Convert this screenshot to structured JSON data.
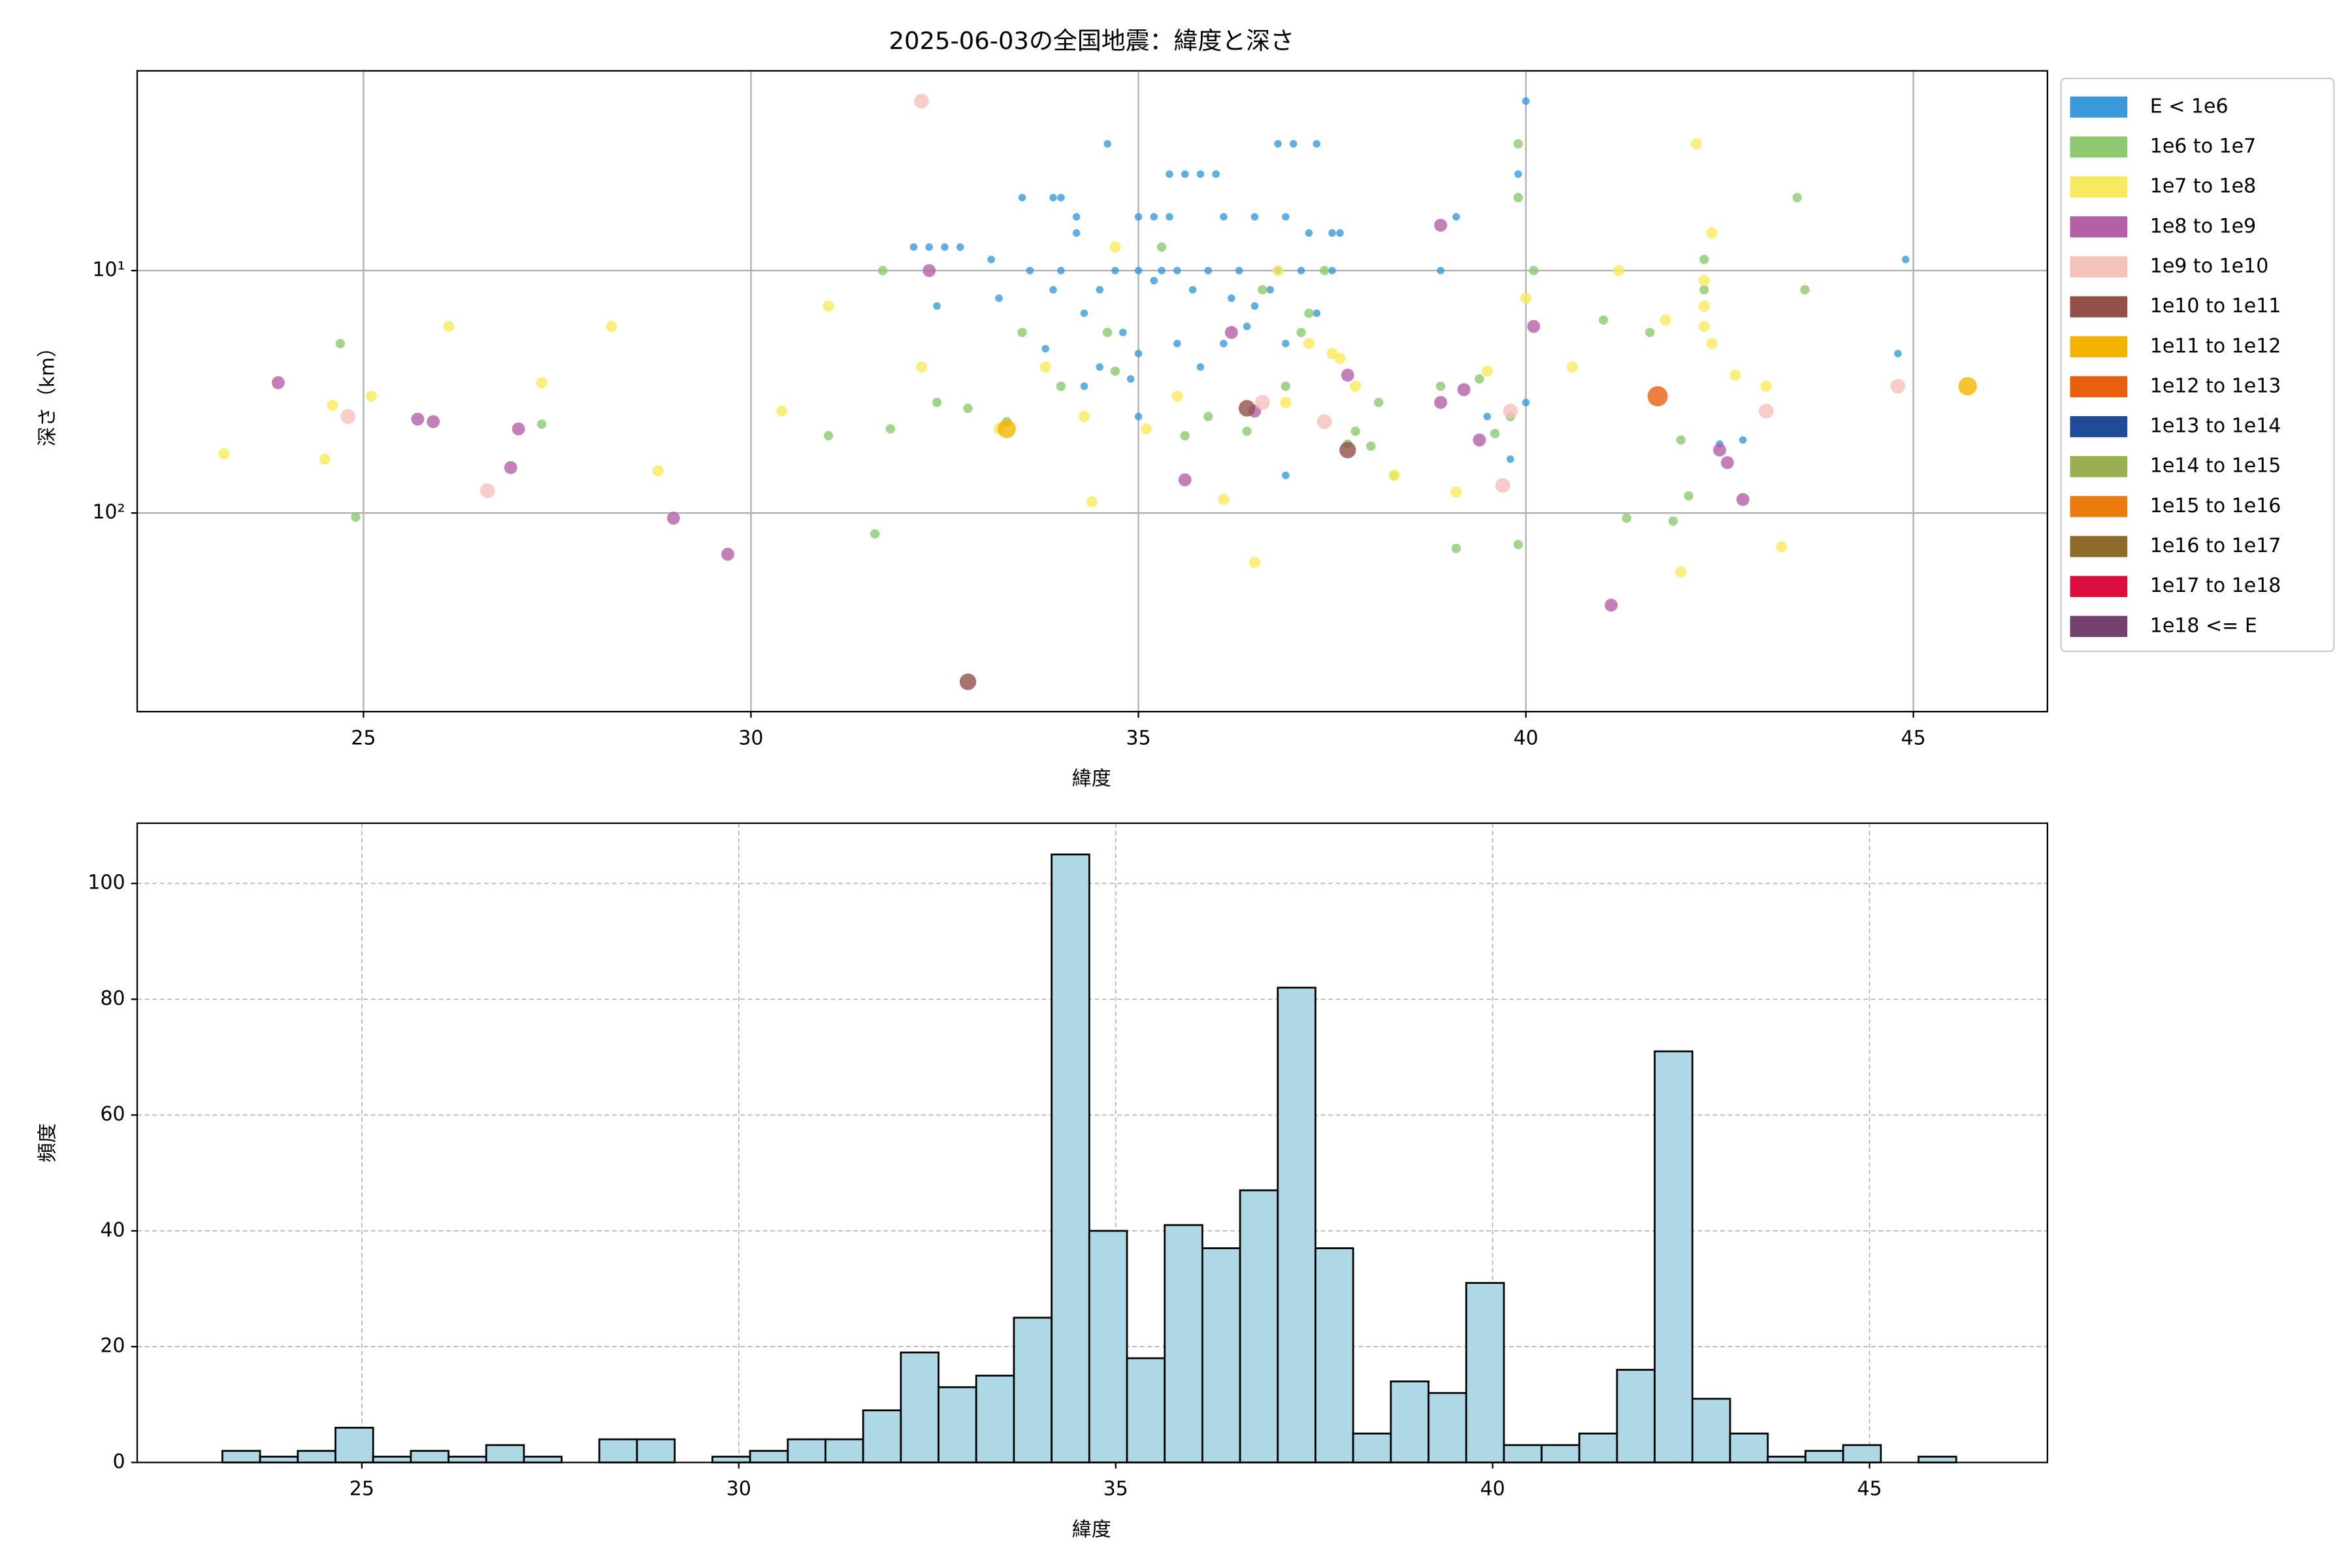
{
  "chart_data": [
    {
      "type": "scatter",
      "title": "2025-06-03の全国地震：緯度と深さ",
      "xlabel": "緯度",
      "ylabel": "深さ（km）",
      "xlim": [
        22.08,
        46.73
      ],
      "xticks": [
        25,
        30,
        35,
        40,
        45
      ],
      "ylim": [
        1.5,
        660
      ],
      "yscale": "log",
      "yinvert": true,
      "yticks": [
        {
          "value": 10,
          "label": "10¹"
        },
        {
          "value": 100,
          "label": "10²"
        }
      ],
      "grid": true,
      "legend": "outside right",
      "series": [
        {
          "name": "E < 1e6",
          "color": "#3a9ad9",
          "x": [
            40.0,
            39.9,
            34.6,
            35.4,
            35.6,
            35.8,
            36.0,
            36.8,
            37.0,
            37.3,
            33.5,
            33.9,
            34.0,
            34.2,
            34.2,
            35.0,
            35.2,
            35.4,
            36.1,
            36.5,
            36.9,
            37.2,
            37.5,
            37.6,
            32.1,
            32.3,
            32.5,
            32.7,
            33.1,
            33.6,
            34.0,
            34.7,
            35.0,
            35.3,
            35.5,
            35.9,
            36.3,
            36.8,
            37.1,
            37.5,
            32.4,
            33.2,
            33.9,
            34.3,
            34.5,
            35.2,
            35.7,
            36.2,
            36.7,
            34.8,
            35.5,
            36.1,
            36.4,
            35.8,
            34.3,
            33.8,
            34.5,
            35.0,
            36.5,
            36.9,
            37.3,
            40.0,
            39.8,
            39.5,
            36.9,
            44.8,
            44.9,
            42.8,
            42.5,
            38.9,
            39.1,
            35.0,
            34.9
          ],
          "y": [
            2.0,
            4.0,
            3.0,
            4.0,
            4.0,
            4.0,
            4.0,
            3.0,
            3.0,
            3.0,
            5.0,
            5.0,
            5.0,
            6.0,
            7.0,
            6.0,
            6.0,
            6.0,
            6.0,
            6.0,
            6.0,
            7.0,
            7.0,
            7.0,
            8.0,
            8.0,
            8.0,
            8.0,
            9.0,
            10,
            10,
            10,
            10,
            10,
            10,
            10,
            10,
            10,
            10,
            10,
            14,
            13,
            12,
            15,
            12,
            11,
            12,
            13,
            12,
            18,
            20,
            20,
            17,
            25,
            30,
            21,
            25,
            22,
            14,
            20,
            15,
            35,
            60,
            40,
            70,
            22,
            9.0,
            50,
            52,
            10,
            6.0,
            40,
            28
          ]
        },
        {
          "name": "1e6 to 1e7",
          "color": "#8cc96f",
          "x": [
            24.7,
            24.9,
            27.3,
            31.0,
            31.6,
            31.7,
            31.8,
            32.4,
            32.8,
            33.3,
            33.5,
            34.0,
            34.6,
            34.7,
            35.6,
            35.9,
            36.4,
            36.9,
            37.2,
            37.4,
            37.7,
            37.8,
            38.0,
            38.3,
            38.9,
            39.1,
            39.4,
            39.6,
            39.8,
            39.9,
            39.9,
            39.9,
            40.1,
            41.0,
            41.3,
            41.6,
            41.9,
            42.0,
            42.1,
            42.3,
            42.3,
            43.5,
            43.6,
            35.3,
            36.6,
            37.1,
            38.1
          ],
          "y": [
            20,
            104,
            43,
            48,
            122,
            10,
            45,
            35,
            37,
            42,
            18,
            30,
            18,
            26,
            48,
            40,
            46,
            30,
            15,
            10,
            52,
            46,
            53,
            70,
            30,
            140,
            28,
            47,
            40,
            135,
            3.0,
            5.0,
            10,
            16,
            105,
            18,
            108,
            50,
            85,
            9.0,
            12,
            5.0,
            12,
            8.0,
            12,
            18,
            35
          ]
        },
        {
          "name": "1e7 to 1e8",
          "color": "#f7ea5e",
          "x": [
            23.2,
            24.5,
            24.6,
            25.1,
            26.1,
            27.3,
            28.2,
            28.8,
            30.4,
            31.0,
            32.2,
            33.2,
            33.8,
            34.3,
            34.4,
            34.7,
            35.1,
            35.5,
            36.1,
            36.5,
            36.9,
            37.2,
            37.6,
            37.8,
            38.3,
            39.1,
            39.5,
            40.0,
            40.6,
            41.2,
            41.8,
            42.0,
            42.2,
            42.3,
            42.3,
            42.3,
            42.4,
            42.4,
            42.7,
            43.1,
            43.3,
            36.8,
            37.5
          ],
          "y": [
            57,
            60,
            36,
            33,
            17,
            29,
            17,
            67,
            38,
            14,
            25,
            45,
            25,
            40,
            90,
            8.0,
            45,
            33,
            88,
            160,
            35,
            20,
            23,
            30,
            70,
            82,
            26,
            13,
            25,
            10,
            16,
            175,
            3.0,
            11,
            14,
            17,
            20,
            7.0,
            27,
            30,
            138,
            10,
            22
          ]
        },
        {
          "name": "1e8 to 1e9",
          "color": "#b460a6",
          "x": [
            23.9,
            25.7,
            25.9,
            27.0,
            26.9,
            29.0,
            29.7,
            32.3,
            35.6,
            36.5,
            37.7,
            38.9,
            39.4,
            40.1,
            41.1,
            42.5,
            42.6,
            42.8,
            39.2,
            36.2,
            38.9
          ],
          "y": [
            29,
            41,
            42,
            45,
            65,
            105,
            148,
            10,
            73,
            38,
            27,
            35,
            50,
            17,
            240,
            55,
            62,
            88,
            31,
            18,
            6.5
          ]
        },
        {
          "name": "1e9 to 1e10",
          "color": "#f4c1bb",
          "x": [
            32.2,
            24.8,
            26.6,
            36.6,
            39.7,
            39.8,
            43.1,
            44.8,
            37.4
          ],
          "y": [
            2.0,
            40,
            81,
            35,
            77,
            38,
            38,
            30,
            42
          ]
        },
        {
          "name": "1e10 to 1e11",
          "color": "#935049",
          "x": [
            32.8,
            37.7,
            36.4
          ],
          "y": [
            497,
            55,
            37
          ]
        },
        {
          "name": "1e11 to 1e12",
          "color": "#f5b301",
          "x": [
            33.3,
            45.7
          ],
          "y": [
            45,
            30
          ]
        },
        {
          "name": "1e12 to 1e13",
          "color": "#e8600f",
          "x": [
            41.7
          ],
          "y": [
            33
          ]
        },
        {
          "name": "1e13 to 1e14",
          "color": "#1f4b99",
          "x": [],
          "y": []
        },
        {
          "name": "1e14 to 1e15",
          "color": "#9aaf4f",
          "x": [],
          "y": []
        },
        {
          "name": "1e15 to 1e16",
          "color": "#ec7b0f",
          "x": [],
          "y": []
        },
        {
          "name": "1e16 to 1e17",
          "color": "#8e6a2b",
          "x": [],
          "y": []
        },
        {
          "name": "1e17 to 1e18",
          "color": "#dc0e3e",
          "x": [],
          "y": []
        },
        {
          "name": "1e18 <= E",
          "color": "#74426c",
          "x": [],
          "y": []
        }
      ]
    },
    {
      "type": "histogram",
      "xlabel": "緯度",
      "ylabel": "頻度",
      "xlim": [
        22.02,
        47.36
      ],
      "xticks": [
        25,
        30,
        35,
        40,
        45
      ],
      "ylim": [
        0,
        110.4
      ],
      "yticks": [
        0,
        20,
        40,
        60,
        80,
        100
      ],
      "grid": true,
      "color": "#add8e6",
      "edgecolor": "#000000",
      "bins": [
        23.15,
        23.65,
        24.15,
        24.65,
        25.15,
        25.65,
        26.15,
        26.65,
        27.15,
        27.65,
        28.15,
        28.65,
        29.15,
        29.65,
        30.15,
        30.65,
        31.15,
        31.65,
        32.15,
        32.65,
        33.15,
        33.65,
        34.15,
        34.65,
        35.15,
        35.65,
        36.15,
        36.65,
        37.15,
        37.65,
        38.15,
        38.65,
        39.15,
        39.65,
        40.15,
        40.65,
        41.15,
        41.65,
        42.15,
        42.65,
        43.15,
        43.65,
        44.15,
        44.65,
        45.15,
        45.65,
        46.15
      ],
      "counts": [
        2,
        1,
        2,
        6,
        1,
        2,
        1,
        3,
        1,
        0,
        4,
        4,
        0,
        1,
        2,
        4,
        4,
        9,
        19,
        13,
        15,
        25,
        105,
        40,
        18,
        41,
        37,
        47,
        82,
        37,
        5,
        14,
        12,
        31,
        3,
        3,
        5,
        16,
        71,
        11,
        5,
        1,
        2,
        3,
        0,
        1
      ]
    }
  ]
}
